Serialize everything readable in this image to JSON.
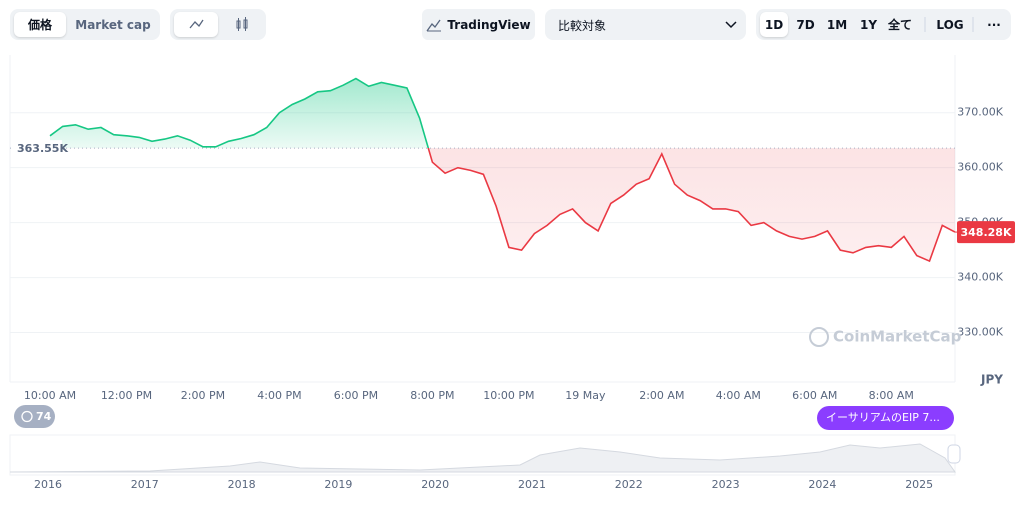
{
  "toolbar": {
    "price_tab": "価格",
    "market_cap_tab": "Market cap",
    "tradingview": "TradingView",
    "compare": "比較対象",
    "ranges": [
      "1D",
      "7D",
      "1M",
      "1Y",
      "全て"
    ],
    "log": "LOG",
    "more": "···"
  },
  "chart_data": {
    "type": "line",
    "categories": [
      "10:00 AM",
      null,
      null,
      null,
      null,
      null,
      "12:00 PM",
      null,
      null,
      null,
      null,
      null,
      "2:00 PM",
      null,
      null,
      null,
      null,
      null,
      "4:00 PM",
      null,
      null,
      null,
      null,
      null,
      "6:00 PM",
      null,
      null,
      null,
      null,
      null,
      "8:00 PM",
      null,
      null,
      null,
      null,
      null,
      "10:00 PM",
      null,
      null,
      null,
      null,
      null,
      "19 May",
      null,
      null,
      null,
      null,
      null,
      "2:00 AM",
      null,
      null,
      null,
      null,
      null,
      "4:00 AM",
      null,
      null,
      null,
      null,
      null,
      "6:00 AM",
      null,
      null,
      null,
      null,
      null,
      "8:00 AM",
      null,
      null,
      null,
      null,
      null
    ],
    "values": [
      365800,
      367500,
      367800,
      367000,
      367300,
      366000,
      365800,
      365500,
      364800,
      365200,
      365800,
      365000,
      363800,
      363800,
      364800,
      365300,
      366000,
      367300,
      370000,
      371500,
      372500,
      373800,
      374000,
      375000,
      376200,
      374800,
      375500,
      375000,
      374500,
      369000,
      361000,
      359000,
      360000,
      359500,
      358800,
      353000,
      345500,
      345000,
      348000,
      349500,
      351500,
      352500,
      350000,
      348500,
      353500,
      355000,
      357000,
      358000,
      362500,
      357000,
      355000,
      354000,
      352500,
      352500,
      352000,
      349500,
      350000,
      348500,
      347500,
      347000,
      347500,
      348500,
      345000,
      344500,
      345500,
      345800,
      345500,
      347500,
      344000,
      343000,
      349500,
      348280
    ],
    "baseline": {
      "value": 363550,
      "label": "363.55K"
    },
    "last_price": {
      "value": 348280,
      "label": "348.28K"
    },
    "up_color": "#16c784",
    "down_color": "#ea3943",
    "ylim": [
      321000,
      380500
    ],
    "yticks": [
      {
        "value": 330000,
        "label": "330.00K"
      },
      {
        "value": 340000,
        "label": "340.00K"
      },
      {
        "value": 350000,
        "label": "350.00K"
      },
      {
        "value": 360000,
        "label": "360.00K"
      },
      {
        "value": 370000,
        "label": "370.00K"
      }
    ],
    "y_unit": "JPY",
    "grid": true,
    "watermark": "CoinMarketCap"
  },
  "events": {
    "count": 74,
    "news": "イーサリアムのEIP 7..."
  },
  "navigator": {
    "years": [
      "2016",
      "2017",
      "2018",
      "2019",
      "2020",
      "2021",
      "2022",
      "2023",
      "2024",
      "2025"
    ]
  }
}
